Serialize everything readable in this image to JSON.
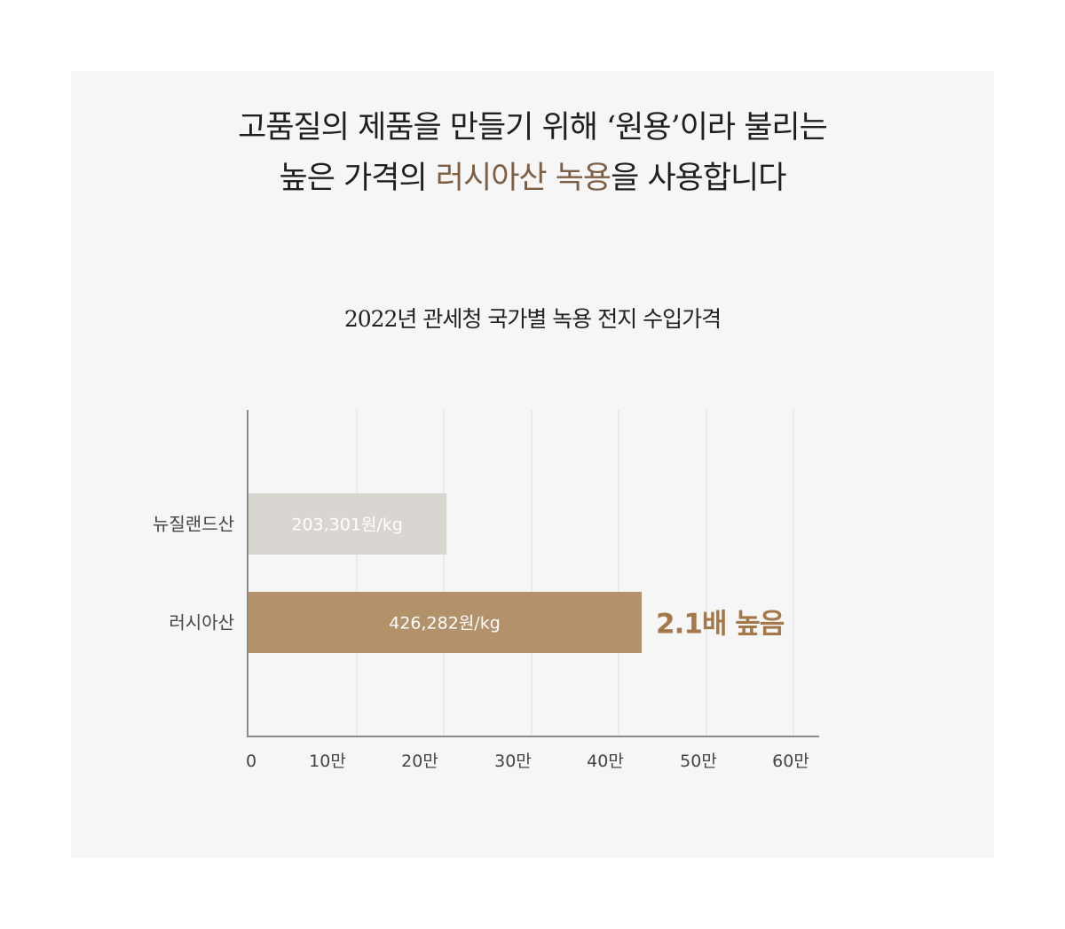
{
  "headline": {
    "line1": "고품질의 제품을 만들기 위해 ‘원용’이라 불리는",
    "line2_pre": "높은 가격의 ",
    "line2_highlight": "러시아산 녹용",
    "line2_post": "을 사용합니다"
  },
  "colors": {
    "highlight": "#7d5f45",
    "bar_nz": "#d9d6d1",
    "bar_ru": "#b3916b",
    "annotation": "#a5784a"
  },
  "chart_data": {
    "type": "bar",
    "orientation": "horizontal",
    "title": "2022년 관세청 국가별 녹용 전지 수입가격",
    "categories": [
      "뉴질랜드산",
      "러시아산"
    ],
    "values": [
      203301,
      426282
    ],
    "value_labels": [
      "203,301원/kg",
      "426,282원/kg"
    ],
    "unit": "원/kg",
    "xlim": [
      0,
      600000
    ],
    "x_ticks": [
      0,
      100000,
      200000,
      300000,
      400000,
      500000,
      600000
    ],
    "x_tick_labels": [
      "0",
      "10만",
      "20만",
      "30만",
      "40만",
      "50만",
      "60만"
    ],
    "grid": true,
    "annotation": "2.1배 높음"
  }
}
